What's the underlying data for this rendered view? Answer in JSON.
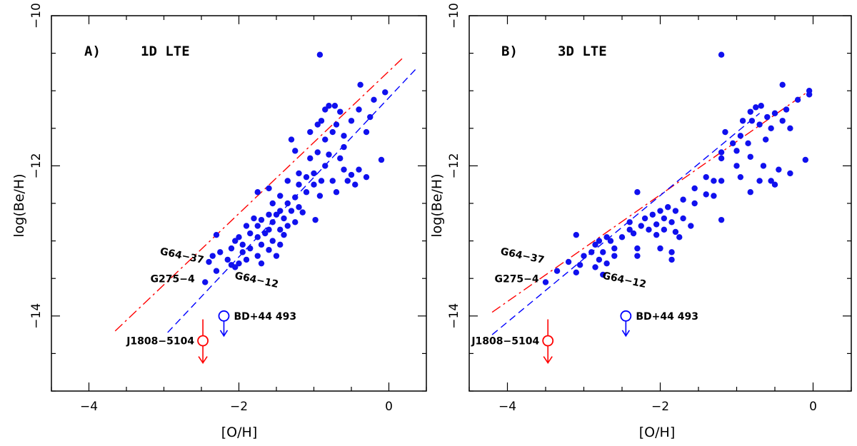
{
  "chart_data": [
    {
      "type": "scatter",
      "panel_label": "A)",
      "title": "1D LTE",
      "xlabel": "[O/H]",
      "ylabel": "log(Be/H)",
      "xlim": [
        -4.5,
        0.5
      ],
      "ylim": [
        -15,
        -10
      ],
      "xticks": [
        -4,
        -2,
        0
      ],
      "xtick_labels": [
        "−4",
        "−2",
        "0"
      ],
      "yticks": [
        -14,
        -12,
        -10
      ],
      "ytick_labels": [
        "−14",
        "−12",
        "−10"
      ],
      "points": [
        [
          -0.92,
          -10.52
        ],
        [
          -0.38,
          -10.92
        ],
        [
          -0.05,
          -11.02
        ],
        [
          -0.2,
          -11.12
        ],
        [
          -0.8,
          -11.2
        ],
        [
          -0.72,
          -11.2
        ],
        [
          -0.85,
          -11.25
        ],
        [
          -0.65,
          -11.28
        ],
        [
          -0.4,
          -11.25
        ],
        [
          -0.25,
          -11.35
        ],
        [
          -0.9,
          -11.4
        ],
        [
          -0.95,
          -11.45
        ],
        [
          -0.7,
          -11.45
        ],
        [
          -0.5,
          -11.4
        ],
        [
          -0.75,
          -11.55
        ],
        [
          -0.6,
          -11.6
        ],
        [
          -1.05,
          -11.55
        ],
        [
          -0.85,
          -11.65
        ],
        [
          -0.3,
          -11.55
        ],
        [
          -1.3,
          -11.65
        ],
        [
          -1.25,
          -11.8
        ],
        [
          -0.95,
          -11.82
        ],
        [
          -0.8,
          -11.85
        ],
        [
          -0.65,
          -11.9
        ],
        [
          -0.6,
          -11.75
        ],
        [
          -1.05,
          -11.9
        ],
        [
          -0.85,
          -12.0
        ],
        [
          -1.0,
          -12.1
        ],
        [
          -0.6,
          -12.05
        ],
        [
          -0.4,
          -12.05
        ],
        [
          -0.1,
          -11.92
        ],
        [
          -0.5,
          -12.12
        ],
        [
          -0.3,
          -12.15
        ],
        [
          -1.2,
          -12.1
        ],
        [
          -0.9,
          -12.2
        ],
        [
          -1.1,
          -12.15
        ],
        [
          -1.35,
          -12.2
        ],
        [
          -0.55,
          -12.2
        ],
        [
          -0.75,
          -12.2
        ],
        [
          -0.45,
          -12.25
        ],
        [
          -1.0,
          -12.25
        ],
        [
          -1.2,
          -12.25
        ],
        [
          -0.7,
          -12.35
        ],
        [
          -1.6,
          -12.3
        ],
        [
          -1.45,
          -12.4
        ],
        [
          -1.1,
          -12.35
        ],
        [
          -1.25,
          -12.42
        ],
        [
          -0.92,
          -12.4
        ],
        [
          -1.75,
          -12.35
        ],
        [
          -1.55,
          -12.5
        ],
        [
          -1.35,
          -12.5
        ],
        [
          -1.2,
          -12.55
        ],
        [
          -1.45,
          -12.6
        ],
        [
          -1.6,
          -12.65
        ],
        [
          -1.5,
          -12.65
        ],
        [
          -1.3,
          -12.6
        ],
        [
          -1.15,
          -12.62
        ],
        [
          -1.8,
          -12.7
        ],
        [
          -1.7,
          -12.72
        ],
        [
          -1.4,
          -12.7
        ],
        [
          -1.55,
          -12.75
        ],
        [
          -0.98,
          -12.72
        ],
        [
          -1.25,
          -12.75
        ],
        [
          -1.9,
          -12.8
        ],
        [
          -1.75,
          -12.8
        ],
        [
          -1.6,
          -12.85
        ],
        [
          -1.45,
          -12.85
        ],
        [
          -1.35,
          -12.8
        ],
        [
          -1.85,
          -12.9
        ],
        [
          -1.65,
          -12.9
        ],
        [
          -1.4,
          -12.92
        ],
        [
          -2.0,
          -12.95
        ],
        [
          -1.75,
          -12.95
        ],
        [
          -1.55,
          -13.0
        ],
        [
          -2.05,
          -13.0
        ],
        [
          -1.95,
          -13.05
        ],
        [
          -2.3,
          -12.92
        ],
        [
          -1.7,
          -13.05
        ],
        [
          -1.45,
          -13.05
        ],
        [
          -2.1,
          -13.1
        ],
        [
          -1.85,
          -13.1
        ],
        [
          -1.6,
          -13.12
        ],
        [
          -2.25,
          -13.15
        ],
        [
          -1.95,
          -13.15
        ],
        [
          -1.75,
          -13.2
        ],
        [
          -1.5,
          -13.2
        ],
        [
          -2.35,
          -13.2
        ],
        [
          -1.9,
          -13.25
        ],
        [
          -2.15,
          -13.25
        ],
        [
          -2.0,
          -13.3
        ],
        [
          -1.7,
          -13.3
        ],
        [
          -2.1,
          -13.32
        ],
        [
          -2.05,
          -13.35
        ],
        [
          -2.4,
          -13.28
        ],
        [
          -2.3,
          -13.4
        ],
        [
          -2.45,
          -13.55
        ]
      ],
      "fits": [
        {
          "name": "red dash-dot fit",
          "color": "#ff0000",
          "style": "dashdot",
          "x": [
            -3.65,
            0.2
          ],
          "y": [
            -14.2,
            -10.55
          ]
        },
        {
          "name": "blue dashed fit",
          "color": "#0000ff",
          "style": "dashed",
          "x": [
            -2.95,
            0.37
          ],
          "y": [
            -14.22,
            -10.7
          ]
        }
      ],
      "upper_limits": [
        {
          "label": "BD+44 493",
          "x": -2.2,
          "y": -14.0,
          "color": "#0000ff"
        },
        {
          "label": "J1808−5104",
          "x": -2.48,
          "y": -14.33,
          "color": "#ff0000"
        }
      ],
      "star_labels": [
        {
          "text": "G64−37",
          "x": -2.45,
          "y": -13.3
        },
        {
          "text": "G275−4",
          "x": -2.55,
          "y": -13.55
        },
        {
          "text": "G64−12",
          "x": -2.1,
          "y": -13.5
        }
      ]
    },
    {
      "type": "scatter",
      "panel_label": "B)",
      "title": "3D LTE",
      "xlabel": "[O/H]",
      "ylabel": "log(Be/H)",
      "xlim": [
        -4.5,
        0.5
      ],
      "ylim": [
        -15,
        -10
      ],
      "xticks": [
        -4,
        -2,
        0
      ],
      "xtick_labels": [
        "−4",
        "−2",
        "0"
      ],
      "yticks": [
        -14,
        -12,
        -10
      ],
      "ytick_labels": [
        "−14",
        "−12",
        "−10"
      ],
      "points": [
        [
          -1.2,
          -10.52
        ],
        [
          -0.4,
          -10.92
        ],
        [
          -0.05,
          -11.0
        ],
        [
          -0.05,
          -11.05
        ],
        [
          -0.2,
          -11.12
        ],
        [
          -0.75,
          -11.22
        ],
        [
          -0.68,
          -11.2
        ],
        [
          -0.35,
          -11.25
        ],
        [
          -0.82,
          -11.28
        ],
        [
          -0.5,
          -11.3
        ],
        [
          -0.6,
          -11.35
        ],
        [
          -0.92,
          -11.4
        ],
        [
          -0.8,
          -11.4
        ],
        [
          -0.4,
          -11.4
        ],
        [
          -0.7,
          -11.45
        ],
        [
          -0.55,
          -11.5
        ],
        [
          -0.3,
          -11.5
        ],
        [
          -1.15,
          -11.55
        ],
        [
          -0.95,
          -11.6
        ],
        [
          -1.05,
          -11.7
        ],
        [
          -0.85,
          -11.7
        ],
        [
          -0.62,
          -11.65
        ],
        [
          -1.0,
          -11.8
        ],
        [
          -1.2,
          -11.82
        ],
        [
          -0.82,
          -11.88
        ],
        [
          -1.2,
          -11.9
        ],
        [
          -1.0,
          -12.0
        ],
        [
          -0.65,
          -12.0
        ],
        [
          -0.45,
          -12.05
        ],
        [
          -0.1,
          -11.92
        ],
        [
          -0.3,
          -12.1
        ],
        [
          -1.4,
          -12.15
        ],
        [
          -1.3,
          -12.2
        ],
        [
          -0.95,
          -12.15
        ],
        [
          -0.55,
          -12.2
        ],
        [
          -0.7,
          -12.2
        ],
        [
          -1.2,
          -12.2
        ],
        [
          -0.5,
          -12.25
        ],
        [
          -1.55,
          -12.3
        ],
        [
          -1.4,
          -12.38
        ],
        [
          -0.82,
          -12.35
        ],
        [
          -1.3,
          -12.4
        ],
        [
          -2.3,
          -12.35
        ],
        [
          -1.7,
          -12.45
        ],
        [
          -1.55,
          -12.5
        ],
        [
          -1.9,
          -12.55
        ],
        [
          -2.0,
          -12.6
        ],
        [
          -1.8,
          -12.6
        ],
        [
          -2.1,
          -12.65
        ],
        [
          -1.95,
          -12.7
        ],
        [
          -1.7,
          -12.7
        ],
        [
          -2.2,
          -12.7
        ],
        [
          -1.2,
          -12.72
        ],
        [
          -2.4,
          -12.75
        ],
        [
          -1.85,
          -12.75
        ],
        [
          -2.05,
          -12.78
        ],
        [
          -2.25,
          -12.8
        ],
        [
          -1.6,
          -12.8
        ],
        [
          -1.95,
          -12.85
        ],
        [
          -2.15,
          -12.85
        ],
        [
          -2.4,
          -12.85
        ],
        [
          -1.8,
          -12.88
        ],
        [
          -2.35,
          -12.9
        ],
        [
          -2.05,
          -12.92
        ],
        [
          -2.5,
          -12.95
        ],
        [
          -1.75,
          -12.95
        ],
        [
          -2.7,
          -12.95
        ],
        [
          -2.8,
          -13.0
        ],
        [
          -2.65,
          -13.0
        ],
        [
          -2.6,
          -13.1
        ],
        [
          -2.85,
          -13.05
        ],
        [
          -3.1,
          -12.92
        ],
        [
          -2.3,
          -13.1
        ],
        [
          -2.0,
          -13.1
        ],
        [
          -2.75,
          -13.15
        ],
        [
          -1.85,
          -13.15
        ],
        [
          -2.9,
          -13.15
        ],
        [
          -2.6,
          -13.2
        ],
        [
          -2.3,
          -13.2
        ],
        [
          -3.0,
          -13.2
        ],
        [
          -2.8,
          -13.25
        ],
        [
          -1.85,
          -13.25
        ],
        [
          -3.2,
          -13.28
        ],
        [
          -2.7,
          -13.3
        ],
        [
          -3.05,
          -13.32
        ],
        [
          -2.85,
          -13.35
        ],
        [
          -3.35,
          -13.4
        ],
        [
          -3.1,
          -13.42
        ],
        [
          -2.75,
          -13.45
        ],
        [
          -3.5,
          -13.55
        ]
      ],
      "fits": [
        {
          "name": "red dash-dot fit",
          "color": "#ff0000",
          "style": "dashdot",
          "x": [
            -4.2,
            -0.05
          ],
          "y": [
            -13.95,
            -11.0
          ]
        },
        {
          "name": "blue dashed fit",
          "color": "#0000ff",
          "style": "dashed",
          "x": [
            -4.2,
            -0.7
          ],
          "y": [
            -14.25,
            -11.3
          ]
        }
      ],
      "upper_limits": [
        {
          "label": "BD+44 493",
          "x": -2.45,
          "y": -14.0,
          "color": "#0000ff"
        },
        {
          "label": "J1808−5104",
          "x": -3.47,
          "y": -14.33,
          "color": "#ff0000"
        }
      ],
      "star_labels": [
        {
          "text": "G64−37",
          "x": -3.5,
          "y": -13.3
        },
        {
          "text": "G275−4",
          "x": -3.55,
          "y": -13.55
        },
        {
          "text": "G64−12",
          "x": -2.8,
          "y": -13.5
        }
      ]
    }
  ]
}
